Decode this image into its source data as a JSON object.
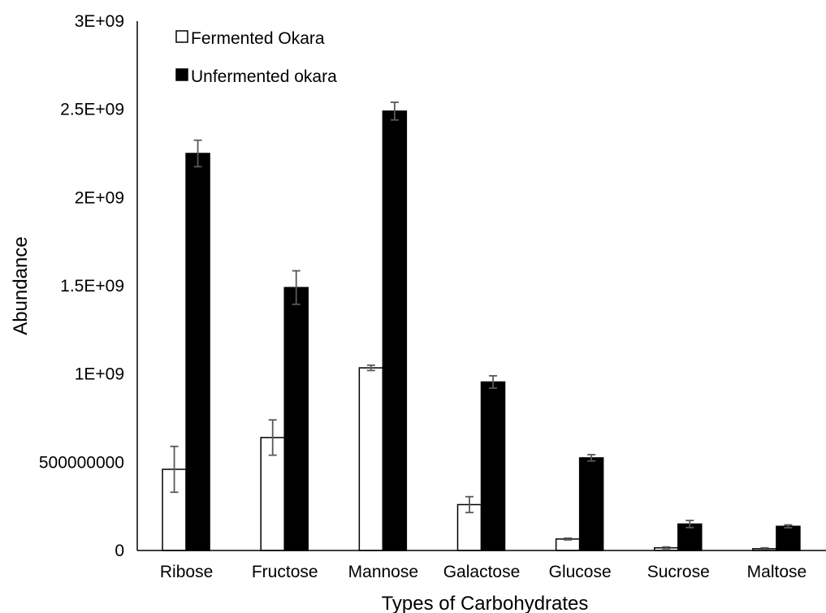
{
  "chart_data": {
    "type": "bar",
    "title": "",
    "xlabel": "Types of Carbohydrates",
    "ylabel": "Abundance",
    "ylim": [
      0,
      3000000000
    ],
    "yticks": [
      0,
      500000000,
      1000000000,
      1500000000,
      2000000000,
      2500000000,
      3000000000
    ],
    "ytick_labels": [
      "0",
      "500000000",
      "1E+09",
      "1.5E+09",
      "2E+09",
      "2.5E+09",
      "3E+09"
    ],
    "categories": [
      "Ribose",
      "Fructose",
      "Mannose",
      "Galactose",
      "Glucose",
      "Sucrose",
      "Maltose"
    ],
    "legend_position": "top-left",
    "grid": false,
    "series": [
      {
        "name": "Fermented Okara",
        "color": "#ffffff",
        "edge": "#000000",
        "values": [
          460000000,
          640000000,
          1035000000,
          260000000,
          65000000,
          15000000,
          10000000
        ],
        "errors": [
          130000000,
          100000000,
          15000000,
          45000000,
          5000000,
          5000000,
          5000000
        ]
      },
      {
        "name": "Unfermented okara",
        "color": "#000000",
        "edge": "#000000",
        "values": [
          2250000000,
          1490000000,
          2490000000,
          955000000,
          525000000,
          150000000,
          137000000
        ],
        "errors": [
          75000000,
          95000000,
          50000000,
          35000000,
          18000000,
          20000000,
          8000000
        ]
      }
    ]
  }
}
